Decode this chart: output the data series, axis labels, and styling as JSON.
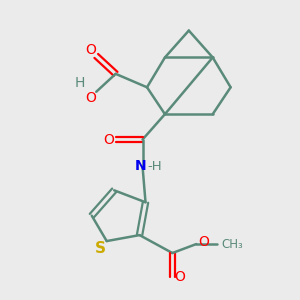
{
  "background_color": "#ebebeb",
  "bond_color": "#5a8a7a",
  "atom_colors": {
    "O": "#ff0000",
    "N": "#0000ee",
    "S": "#ccaa00",
    "H": "#5a8a7a",
    "C": "#5a8a7a"
  },
  "figsize": [
    3.0,
    3.0
  ],
  "dpi": 100
}
